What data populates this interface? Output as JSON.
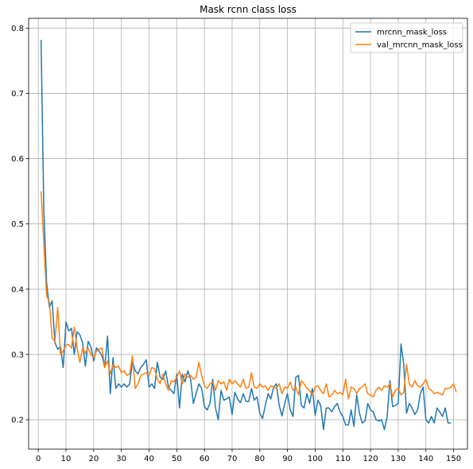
{
  "chart_data": {
    "type": "line",
    "title": "Mask rcnn class loss",
    "xlabel": "",
    "ylabel": "",
    "xlim": [
      -3.5,
      155
    ],
    "ylim": [
      0.155,
      0.815
    ],
    "xticks": [
      0,
      10,
      20,
      30,
      40,
      50,
      60,
      70,
      80,
      90,
      100,
      110,
      120,
      130,
      140,
      150
    ],
    "yticks": [
      0.2,
      0.3,
      0.4,
      0.5,
      0.6,
      0.7,
      0.8
    ],
    "grid": true,
    "legend_position": "top-right",
    "series": [
      {
        "name": "mrcnn_mask_loss",
        "color": "#1f77b4",
        "x_start": 1,
        "values": [
          0.782,
          0.52,
          0.41,
          0.372,
          0.382,
          0.318,
          0.308,
          0.312,
          0.28,
          0.35,
          0.336,
          0.34,
          0.3,
          0.335,
          0.33,
          0.318,
          0.282,
          0.32,
          0.312,
          0.29,
          0.31,
          0.305,
          0.298,
          0.28,
          0.328,
          0.24,
          0.295,
          0.248,
          0.255,
          0.25,
          0.255,
          0.25,
          0.255,
          0.29,
          0.275,
          0.27,
          0.28,
          0.285,
          0.292,
          0.25,
          0.255,
          0.248,
          0.288,
          0.265,
          0.262,
          0.275,
          0.25,
          0.245,
          0.24,
          0.27,
          0.218,
          0.27,
          0.258,
          0.275,
          0.262,
          0.225,
          0.24,
          0.255,
          0.248,
          0.22,
          0.215,
          0.225,
          0.262,
          0.218,
          0.2,
          0.245,
          0.23,
          0.232,
          0.235,
          0.208,
          0.242,
          0.232,
          0.226,
          0.24,
          0.228,
          0.228,
          0.248,
          0.23,
          0.235,
          0.21,
          0.202,
          0.222,
          0.24,
          0.232,
          0.25,
          0.255,
          0.222,
          0.206,
          0.225,
          0.24,
          0.215,
          0.205,
          0.265,
          0.268,
          0.222,
          0.218,
          0.24,
          0.225,
          0.248,
          0.207,
          0.23,
          0.222,
          0.185,
          0.218,
          0.218,
          0.212,
          0.22,
          0.225,
          0.212,
          0.205,
          0.192,
          0.192,
          0.215,
          0.19,
          0.238,
          0.21,
          0.195,
          0.198,
          0.225,
          0.215,
          0.212,
          0.2,
          0.198,
          0.2,
          0.185,
          0.205,
          0.26,
          0.22,
          0.222,
          0.225,
          0.316,
          0.285,
          0.21,
          0.225,
          0.218,
          0.208,
          0.215,
          0.24,
          0.25,
          0.2,
          0.195,
          0.205,
          0.195,
          0.218,
          0.212,
          0.205,
          0.218,
          0.195,
          0.195
        ]
      },
      {
        "name": "val_mrcnn_mask_loss",
        "color": "#ff7f0e",
        "x_start": 1,
        "values": [
          0.55,
          0.47,
          0.39,
          0.38,
          0.325,
          0.32,
          0.372,
          0.3,
          0.305,
          0.315,
          0.315,
          0.31,
          0.342,
          0.31,
          0.288,
          0.31,
          0.302,
          0.31,
          0.3,
          0.295,
          0.305,
          0.308,
          0.31,
          0.28,
          0.29,
          0.27,
          0.285,
          0.28,
          0.282,
          0.272,
          0.275,
          0.268,
          0.27,
          0.298,
          0.248,
          0.255,
          0.268,
          0.27,
          0.272,
          0.268,
          0.28,
          0.278,
          0.262,
          0.255,
          0.27,
          0.255,
          0.245,
          0.26,
          0.258,
          0.265,
          0.275,
          0.255,
          0.27,
          0.265,
          0.268,
          0.262,
          0.265,
          0.288,
          0.268,
          0.252,
          0.248,
          0.255,
          0.258,
          0.245,
          0.26,
          0.255,
          0.258,
          0.245,
          0.262,
          0.255,
          0.26,
          0.255,
          0.25,
          0.262,
          0.248,
          0.25,
          0.272,
          0.25,
          0.248,
          0.255,
          0.25,
          0.252,
          0.245,
          0.252,
          0.25,
          0.248,
          0.255,
          0.24,
          0.25,
          0.248,
          0.258,
          0.245,
          0.25,
          0.238,
          0.26,
          0.255,
          0.248,
          0.245,
          0.238,
          0.25,
          0.252,
          0.245,
          0.24,
          0.255,
          0.235,
          0.238,
          0.245,
          0.24,
          0.242,
          0.238,
          0.262,
          0.232,
          0.25,
          0.248,
          0.24,
          0.248,
          0.25,
          0.255,
          0.24,
          0.238,
          0.235,
          0.245,
          0.25,
          0.245,
          0.252,
          0.25,
          0.255,
          0.235,
          0.245,
          0.248,
          0.238,
          0.242,
          0.285,
          0.255,
          0.25,
          0.26,
          0.252,
          0.25,
          0.255,
          0.262,
          0.248,
          0.245,
          0.24,
          0.242,
          0.24,
          0.238,
          0.248,
          0.248,
          0.25,
          0.255,
          0.242
        ]
      }
    ]
  }
}
